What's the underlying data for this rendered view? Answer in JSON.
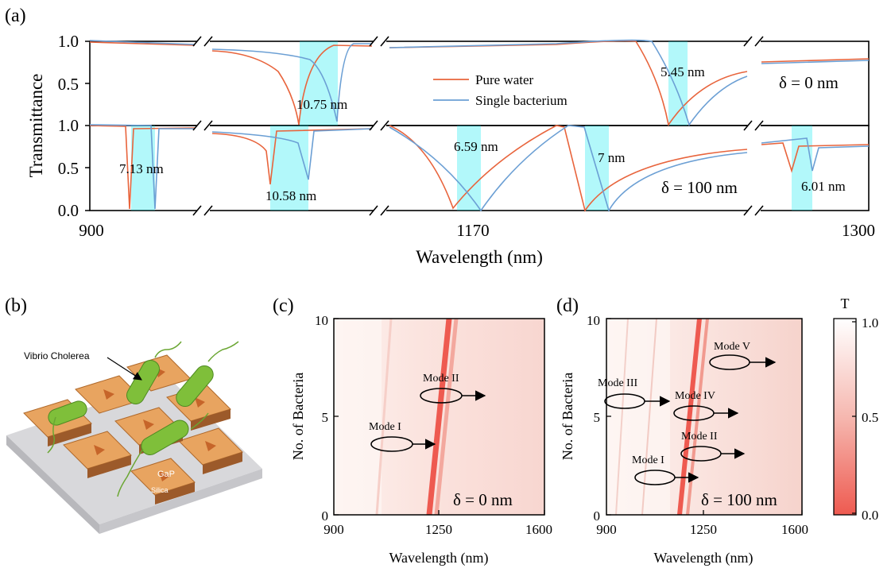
{
  "figure": {
    "panel_labels": [
      "(a)",
      "(b)",
      "(c)",
      "(d)"
    ]
  },
  "panel_a": {
    "ylabel": "Transmittance",
    "xlabel": "Wavelength (nm)",
    "x_ticks": [
      "900",
      "1170",
      "1300"
    ],
    "y_ticks_top": [
      "1.0",
      "0.5"
    ],
    "y_ticks_bottom": [
      "1.0",
      "0.5",
      "0.0"
    ],
    "legend": [
      "Pure water",
      "Single bacterium"
    ],
    "delta_top": "δ = 0 nm",
    "delta_bottom": "δ = 100 nm",
    "shift_labels_top": [
      "10.75 nm",
      "5.45 nm"
    ],
    "shift_labels_bottom": [
      "7.13 nm",
      "10.58 nm",
      "6.59 nm",
      "7 nm",
      "6.01 nm"
    ]
  },
  "panel_b": {
    "label_bacterium": "Vibrio Cholerea",
    "label_gap": "GaP",
    "label_silica": "Silica"
  },
  "panel_c": {
    "ylabel": "No. of Bacteria",
    "xlabel": "Wavelength (nm)",
    "x_ticks": [
      "900",
      "1250",
      "1600"
    ],
    "y_ticks": [
      "10",
      "5",
      "0"
    ],
    "delta": "δ = 0 nm",
    "modes": [
      "Mode I",
      "Mode II"
    ]
  },
  "panel_d": {
    "ylabel": "No. of Bacteria",
    "xlabel": "Wavelength (nm)",
    "x_ticks": [
      "900",
      "1250",
      "1600"
    ],
    "y_ticks": [
      "10",
      "5",
      "0"
    ],
    "delta": "δ = 100 nm",
    "modes": [
      "Mode I",
      "Mode II",
      "Mode III",
      "Mode IV",
      "Mode V"
    ]
  },
  "colorbar": {
    "title": "T",
    "ticks": [
      "1.0",
      "0.5",
      "0.0"
    ]
  },
  "colors": {
    "pure_water": "#e8643c",
    "single_bacterium": "#6b9fd4",
    "highlight": "#00e8ee"
  },
  "chart_data": [
    {
      "type": "line",
      "panel": "a-top",
      "xlabel": "Wavelength (nm)",
      "ylabel": "Transmittance",
      "ylim": [
        0,
        1
      ],
      "series": [
        {
          "name": "Pure water",
          "resonances_dip_transmittance": [
            0.0,
            0.0
          ]
        },
        {
          "name": "Single bacterium",
          "resonances_dip_transmittance": [
            0.0,
            0.0
          ]
        }
      ],
      "resonance_shifts_nm": [
        10.75,
        5.45
      ]
    },
    {
      "type": "line",
      "panel": "a-bottom",
      "xlabel": "Wavelength (nm)",
      "ylabel": "Transmittance",
      "ylim": [
        0,
        1
      ],
      "resonance_shifts_nm": [
        7.13,
        10.58,
        6.59,
        7,
        6.01
      ]
    },
    {
      "type": "heatmap",
      "panel": "c",
      "x_range": [
        900,
        1600
      ],
      "y_range": [
        0,
        10
      ],
      "colorbar_range": [
        0,
        1
      ]
    },
    {
      "type": "heatmap",
      "panel": "d",
      "x_range": [
        900,
        1600
      ],
      "y_range": [
        0,
        10
      ],
      "colorbar_range": [
        0,
        1
      ]
    }
  ]
}
